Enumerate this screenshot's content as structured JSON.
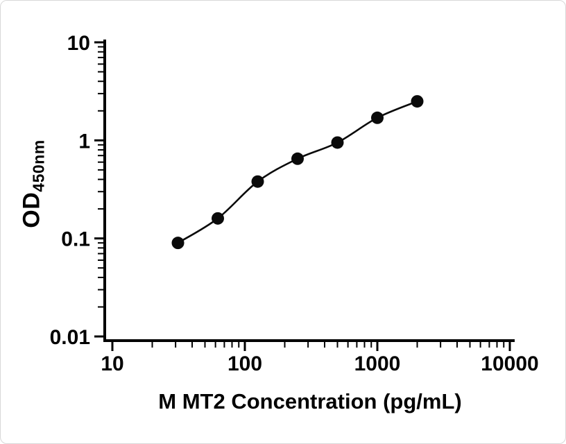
{
  "figure": {
    "background_color": "#ffffff",
    "border_color": "#d8d8d8"
  },
  "chart_data": {
    "type": "scatter",
    "subtype": "ELISA standard curve with fitted line through points",
    "title": "",
    "xlabel": "M MT2 Concentration (pg/mL)",
    "ylabel_main": "OD",
    "ylabel_sub": "450nm",
    "x_scale": "log10",
    "y_scale": "log10",
    "xlim": [
      10,
      10000
    ],
    "ylim": [
      0.01,
      10
    ],
    "grid": false,
    "legend": "none",
    "minor_ticks": true,
    "x_ticks": [
      {
        "value": 10,
        "label": "10"
      },
      {
        "value": 100,
        "label": "100"
      },
      {
        "value": 1000,
        "label": "1000"
      },
      {
        "value": 10000,
        "label": "10000"
      }
    ],
    "y_ticks": [
      {
        "value": 0.01,
        "label": "0.01"
      },
      {
        "value": 0.1,
        "label": "0.1"
      },
      {
        "value": 1,
        "label": "1"
      },
      {
        "value": 10,
        "label": "10"
      }
    ],
    "points": [
      {
        "x": 31.25,
        "y": 0.09
      },
      {
        "x": 62.5,
        "y": 0.16
      },
      {
        "x": 125,
        "y": 0.38
      },
      {
        "x": 250,
        "y": 0.65
      },
      {
        "x": 500,
        "y": 0.95
      },
      {
        "x": 1000,
        "y": 1.7
      },
      {
        "x": 2000,
        "y": 2.5
      }
    ],
    "curve_through_points": true,
    "marker_color": "#0a0a0a",
    "curve_color": "#0a0a0a",
    "axis_color": "#000000",
    "tick_label_color": "#000000"
  }
}
